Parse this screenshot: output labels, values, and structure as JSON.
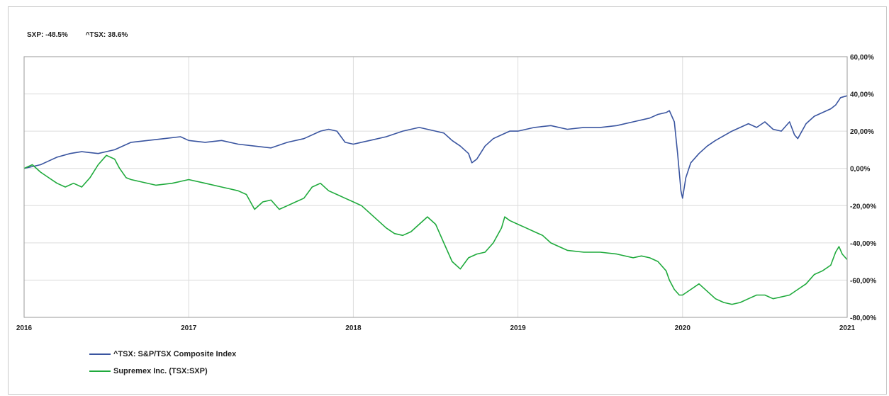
{
  "summary": {
    "sxp": "SXP: -48.5%",
    "tsx": "^TSX: 38.6%"
  },
  "chart_data": {
    "type": "line",
    "x_range": [
      2016,
      2021
    ],
    "ylim": [
      -80,
      60
    ],
    "grid": true,
    "legend_placement": "bottom-left",
    "x_ticks": [
      "2016",
      "2017",
      "2018",
      "2019",
      "2020",
      "2021"
    ],
    "y_ticks": [
      {
        "value": 60,
        "label": "60,00%"
      },
      {
        "value": 40,
        "label": "40,00%"
      },
      {
        "value": 20,
        "label": "20,00%"
      },
      {
        "value": 0,
        "label": "0,00%"
      },
      {
        "value": -20,
        "label": "-20,00%"
      },
      {
        "value": -40,
        "label": "-40,00%"
      },
      {
        "value": -60,
        "label": "-60,00%"
      },
      {
        "value": -80,
        "label": "-80,00%"
      }
    ],
    "series": [
      {
        "name": "^TSX: S&P/TSX Composite Index",
        "color": "#3a55a0",
        "x": [
          2016.0,
          2016.05,
          2016.1,
          2016.15,
          2016.2,
          2016.28,
          2016.35,
          2016.45,
          2016.55,
          2016.65,
          2016.75,
          2016.85,
          2016.95,
          2017.0,
          2017.1,
          2017.2,
          2017.3,
          2017.4,
          2017.5,
          2017.6,
          2017.7,
          2017.8,
          2017.85,
          2017.9,
          2017.95,
          2018.0,
          2018.1,
          2018.2,
          2018.3,
          2018.4,
          2018.45,
          2018.5,
          2018.55,
          2018.6,
          2018.65,
          2018.7,
          2018.72,
          2018.75,
          2018.8,
          2018.85,
          2018.9,
          2018.95,
          2019.0,
          2019.1,
          2019.2,
          2019.3,
          2019.4,
          2019.5,
          2019.6,
          2019.7,
          2019.8,
          2019.85,
          2019.9,
          2019.92,
          2019.95,
          2019.97,
          2019.99,
          2020.0,
          2020.02,
          2020.05,
          2020.1,
          2020.15,
          2020.2,
          2020.3,
          2020.35,
          2020.4,
          2020.45,
          2020.5,
          2020.55,
          2020.6,
          2020.65,
          2020.68,
          2020.7,
          2020.75,
          2020.8,
          2020.85,
          2020.9,
          2020.93,
          2020.96,
          2021.0
        ],
        "y": [
          0,
          1,
          2,
          4,
          6,
          8,
          9,
          8,
          10,
          14,
          15,
          16,
          17,
          15,
          14,
          15,
          13,
          12,
          11,
          14,
          16,
          20,
          21,
          20,
          14,
          13,
          15,
          17,
          20,
          22,
          21,
          20,
          19,
          15,
          12,
          8,
          3,
          5,
          12,
          16,
          18,
          20,
          20,
          22,
          23,
          21,
          22,
          22,
          23,
          25,
          27,
          29,
          30,
          31,
          25,
          8,
          -12,
          -16,
          -5,
          3,
          8,
          12,
          15,
          20,
          22,
          24,
          22,
          25,
          21,
          20,
          25,
          18,
          16,
          24,
          28,
          30,
          32,
          34,
          38,
          39
        ]
      },
      {
        "name": "Supremex Inc. (TSX:SXP)",
        "color": "#1faa3c",
        "x": [
          2016.0,
          2016.05,
          2016.1,
          2016.15,
          2016.2,
          2016.25,
          2016.3,
          2016.35,
          2016.4,
          2016.45,
          2016.5,
          2016.55,
          2016.58,
          2016.62,
          2016.65,
          2016.7,
          2016.8,
          2016.9,
          2017.0,
          2017.1,
          2017.2,
          2017.25,
          2017.3,
          2017.35,
          2017.4,
          2017.45,
          2017.5,
          2017.55,
          2017.6,
          2017.65,
          2017.7,
          2017.75,
          2017.8,
          2017.85,
          2017.9,
          2017.95,
          2018.0,
          2018.05,
          2018.1,
          2018.15,
          2018.2,
          2018.25,
          2018.3,
          2018.35,
          2018.4,
          2018.45,
          2018.5,
          2018.55,
          2018.6,
          2018.65,
          2018.7,
          2018.75,
          2018.8,
          2018.85,
          2018.9,
          2018.92,
          2018.95,
          2019.0,
          2019.05,
          2019.1,
          2019.15,
          2019.2,
          2019.25,
          2019.3,
          2019.4,
          2019.5,
          2019.6,
          2019.7,
          2019.75,
          2019.8,
          2019.85,
          2019.9,
          2019.92,
          2019.95,
          2019.98,
          2020.0,
          2020.05,
          2020.1,
          2020.15,
          2020.2,
          2020.25,
          2020.3,
          2020.35,
          2020.4,
          2020.45,
          2020.5,
          2020.55,
          2020.6,
          2020.65,
          2020.7,
          2020.75,
          2020.8,
          2020.85,
          2020.9,
          2020.93,
          2020.95,
          2020.97,
          2021.0
        ],
        "y": [
          0,
          2,
          -2,
          -5,
          -8,
          -10,
          -8,
          -10,
          -5,
          2,
          7,
          5,
          0,
          -5,
          -6,
          -7,
          -9,
          -8,
          -6,
          -8,
          -10,
          -11,
          -12,
          -14,
          -22,
          -18,
          -17,
          -22,
          -20,
          -18,
          -16,
          -10,
          -8,
          -12,
          -14,
          -16,
          -18,
          -20,
          -24,
          -28,
          -32,
          -35,
          -36,
          -34,
          -30,
          -26,
          -30,
          -40,
          -50,
          -54,
          -48,
          -46,
          -45,
          -40,
          -32,
          -26,
          -28,
          -30,
          -32,
          -34,
          -36,
          -40,
          -42,
          -44,
          -45,
          -45,
          -46,
          -48,
          -47,
          -48,
          -50,
          -55,
          -60,
          -65,
          -68,
          -68,
          -65,
          -62,
          -66,
          -70,
          -72,
          -73,
          -72,
          -70,
          -68,
          -68,
          -70,
          -69,
          -68,
          -65,
          -62,
          -57,
          -55,
          -52,
          -45,
          -42,
          -46,
          -49
        ]
      }
    ]
  }
}
